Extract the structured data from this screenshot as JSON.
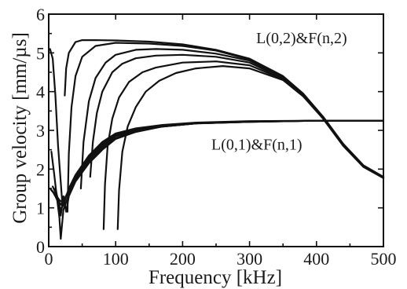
{
  "chart_data": {
    "type": "line",
    "xlabel": "Frequency [kHz]",
    "ylabel": "Group velocity [mm/µs]",
    "xlim": [
      0,
      500
    ],
    "ylim": [
      0,
      6
    ],
    "x_ticks": [
      "0",
      "100",
      "200",
      "300",
      "400",
      "500"
    ],
    "y_ticks": [
      "0",
      "1",
      "2",
      "3",
      "4",
      "5",
      "6"
    ],
    "grid": false,
    "annotations": [
      {
        "text": "L(0,2)&F(n,2)",
        "x": 310,
        "y": 5.25
      },
      {
        "text": "L(0,1)&F(n,1)",
        "x": 243,
        "y": 2.5
      }
    ],
    "series": [
      {
        "family": "first-order",
        "x": [
          4,
          8,
          12,
          16,
          20,
          30,
          40,
          60,
          80,
          100,
          130,
          170,
          220,
          300,
          400,
          500
        ],
        "y": [
          1.45,
          1.38,
          1.3,
          1.2,
          1.15,
          1.4,
          1.75,
          2.25,
          2.6,
          2.85,
          3.0,
          3.1,
          3.18,
          3.22,
          3.25,
          3.25
        ]
      },
      {
        "family": "first-order",
        "x": [
          4,
          8,
          12,
          16,
          18,
          22,
          30,
          40,
          60,
          80,
          100,
          130,
          170,
          220,
          300,
          400,
          500
        ],
        "y": [
          2.45,
          1.9,
          1.3,
          0.75,
          0.2,
          0.95,
          1.35,
          1.72,
          2.2,
          2.55,
          2.8,
          2.98,
          3.1,
          3.18,
          3.22,
          3.25,
          3.25
        ]
      },
      {
        "family": "first-order",
        "x": [
          10,
          14,
          18,
          22,
          26,
          30,
          40,
          60,
          80,
          100,
          130,
          170,
          220,
          300,
          400,
          500
        ],
        "y": [
          1.5,
          1.2,
          0.8,
          1.3,
          0.9,
          1.3,
          1.68,
          2.15,
          2.5,
          2.78,
          2.96,
          3.1,
          3.18,
          3.22,
          3.25,
          3.25
        ]
      },
      {
        "family": "first-order",
        "x": [
          6,
          10,
          14,
          18,
          22,
          30,
          40,
          60,
          80,
          100,
          130,
          170,
          220,
          300,
          400,
          500
        ],
        "y": [
          1.55,
          1.4,
          1.2,
          1.08,
          1.18,
          1.45,
          1.8,
          2.3,
          2.65,
          2.88,
          3.02,
          3.12,
          3.19,
          3.23,
          3.25,
          3.25
        ]
      },
      {
        "family": "first-order",
        "x": [
          2,
          6,
          10,
          14,
          18,
          22,
          30,
          40,
          60,
          80,
          100,
          130,
          170,
          220,
          300,
          400,
          500
        ],
        "y": [
          1.5,
          1.42,
          1.3,
          1.15,
          0.95,
          1.08,
          1.5,
          1.85,
          2.35,
          2.7,
          2.92,
          3.05,
          3.14,
          3.2,
          3.24,
          3.25,
          3.25
        ]
      },
      {
        "family": "second-order",
        "x": [
          2,
          6,
          10,
          14,
          20
        ],
        "y": [
          5.1,
          4.85,
          3.9,
          2.6,
          1.2
        ]
      },
      {
        "family": "second-order",
        "x": [
          24,
          26,
          30,
          40,
          50,
          70,
          100,
          150,
          200,
          250,
          300,
          350,
          380,
          410,
          440,
          470,
          500
        ],
        "y": [
          3.9,
          4.6,
          5.0,
          5.28,
          5.33,
          5.33,
          5.32,
          5.29,
          5.22,
          5.08,
          4.85,
          4.4,
          3.95,
          3.35,
          2.65,
          2.1,
          1.8
        ]
      },
      {
        "family": "second-order",
        "x": [
          28,
          30,
          34,
          40,
          50,
          70,
          100,
          150,
          200,
          250,
          300,
          350,
          380,
          410,
          440,
          470,
          500
        ],
        "y": [
          0.9,
          2.4,
          3.6,
          4.4,
          4.9,
          5.18,
          5.26,
          5.24,
          5.18,
          5.06,
          4.83,
          4.38,
          3.93,
          3.33,
          2.63,
          2.08,
          1.78
        ]
      },
      {
        "family": "second-order",
        "x": [
          48,
          52,
          60,
          70,
          85,
          100,
          130,
          160,
          200,
          250,
          300,
          350,
          380,
          410,
          440,
          470,
          500
        ],
        "y": [
          1.5,
          2.7,
          3.75,
          4.35,
          4.75,
          4.95,
          5.08,
          5.1,
          5.08,
          4.98,
          4.8,
          4.36,
          3.92,
          3.32,
          2.62,
          2.08,
          1.78
        ]
      },
      {
        "family": "second-order",
        "x": [
          62,
          66,
          72,
          80,
          95,
          110,
          130,
          160,
          200,
          250,
          300,
          350,
          380,
          410,
          440,
          470,
          500
        ],
        "y": [
          1.8,
          2.7,
          3.45,
          4.0,
          4.5,
          4.72,
          4.86,
          4.93,
          4.95,
          4.9,
          4.75,
          4.34,
          3.9,
          3.31,
          2.61,
          2.07,
          1.77
        ]
      },
      {
        "family": "second-order",
        "x": [
          82,
          84,
          88,
          95,
          105,
          120,
          140,
          160,
          200,
          250,
          300,
          350,
          380,
          410,
          440,
          470,
          500
        ],
        "y": [
          0.45,
          1.6,
          2.6,
          3.3,
          3.85,
          4.25,
          4.5,
          4.62,
          4.75,
          4.78,
          4.68,
          4.32,
          3.9,
          3.3,
          2.6,
          2.06,
          1.77
        ]
      },
      {
        "family": "second-order",
        "x": [
          103,
          105,
          110,
          118,
          130,
          145,
          165,
          190,
          220,
          260,
          300,
          350,
          380,
          410,
          440,
          470,
          500
        ],
        "y": [
          0.45,
          1.45,
          2.45,
          3.1,
          3.6,
          4.0,
          4.28,
          4.48,
          4.6,
          4.66,
          4.6,
          4.3,
          3.88,
          3.3,
          2.6,
          2.06,
          1.77
        ]
      }
    ]
  }
}
